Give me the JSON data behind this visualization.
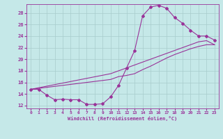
{
  "xlabel": "Windchill (Refroidissement éolien,°C)",
  "xlim": [
    -0.5,
    23.5
  ],
  "ylim": [
    11.5,
    29.5
  ],
  "xticks": [
    0,
    1,
    2,
    3,
    4,
    5,
    6,
    7,
    8,
    9,
    10,
    11,
    12,
    13,
    14,
    15,
    16,
    17,
    18,
    19,
    20,
    21,
    22,
    23
  ],
  "yticks": [
    12,
    14,
    16,
    18,
    20,
    22,
    24,
    26,
    28
  ],
  "background_color": "#c5e8e8",
  "line_color": "#993399",
  "grid_color": "#a8cccc",
  "line1_x": [
    0,
    1,
    2,
    3,
    4,
    5,
    6,
    7,
    8,
    9,
    10,
    11,
    12,
    13,
    14,
    15,
    16,
    17,
    18,
    19,
    20,
    21,
    22,
    23
  ],
  "line1_y": [
    14.8,
    14.8,
    13.8,
    13.0,
    13.1,
    13.0,
    13.0,
    12.2,
    12.2,
    12.3,
    13.5,
    15.5,
    18.5,
    21.5,
    27.5,
    29.0,
    29.3,
    28.8,
    27.2,
    26.2,
    25.0,
    24.0,
    24.0,
    23.3
  ],
  "line2_x": [
    0,
    10,
    11,
    12,
    13,
    14,
    15,
    16,
    17,
    18,
    19,
    20,
    21,
    22,
    23
  ],
  "line2_y": [
    14.8,
    17.5,
    18.0,
    18.5,
    19.0,
    19.5,
    20.0,
    20.5,
    21.0,
    21.5,
    22.0,
    22.5,
    23.0,
    23.2,
    22.5
  ],
  "line3_x": [
    0,
    10,
    11,
    12,
    13,
    14,
    15,
    16,
    17,
    18,
    19,
    20,
    21,
    22,
    23
  ],
  "line3_y": [
    14.8,
    16.5,
    17.0,
    17.2,
    17.5,
    18.2,
    18.8,
    19.5,
    20.2,
    20.8,
    21.3,
    21.8,
    22.2,
    22.5,
    22.5
  ]
}
